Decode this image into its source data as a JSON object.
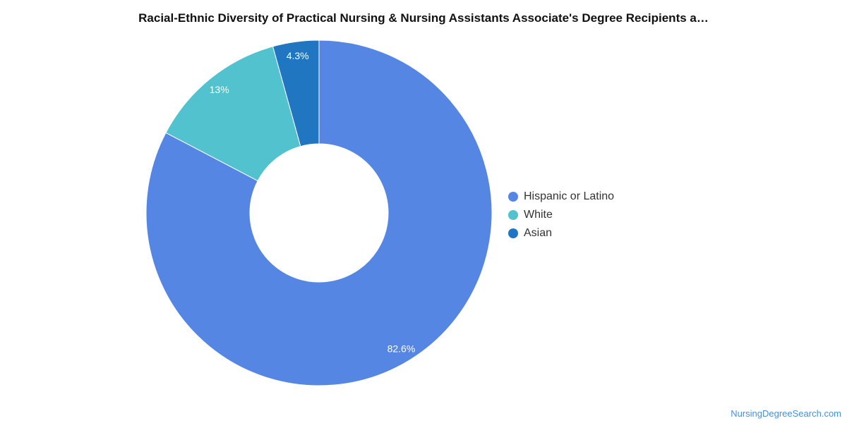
{
  "chart_data": {
    "type": "pie",
    "title": "Racial-Ethnic Diversity of Practical Nursing & Nursing Assistants Associate's Degree Recipients a…",
    "categories": [
      "Hispanic or Latino",
      "White",
      "Asian"
    ],
    "values": [
      82.6,
      13,
      4.3
    ],
    "value_labels": [
      "82.6%",
      "13%",
      "4.3%"
    ],
    "colors": [
      "#5586e4",
      "#52c2cf",
      "#2176c1"
    ],
    "donut": true,
    "legend_position": "right"
  },
  "footer": {
    "source": "NursingDegreeSearch.com"
  }
}
